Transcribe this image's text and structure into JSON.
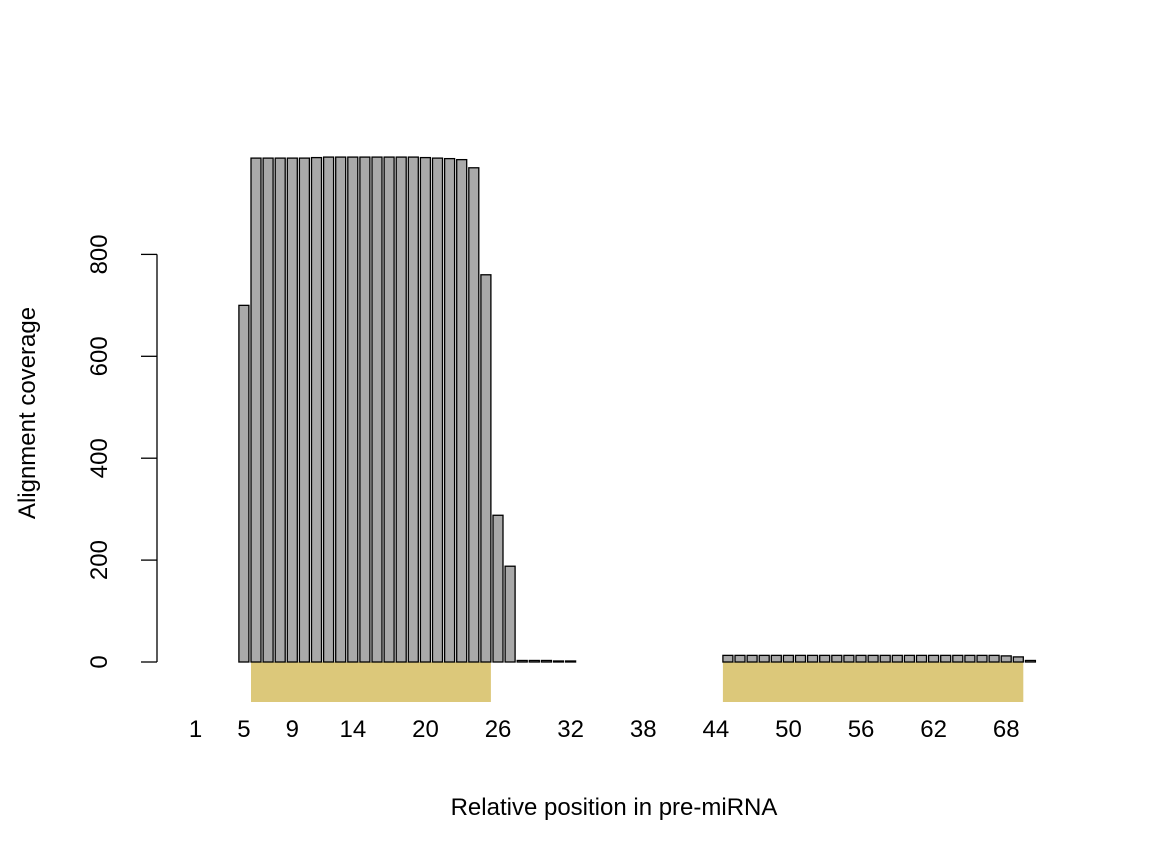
{
  "chart_data": {
    "type": "bar",
    "xlabel": "Relative position in pre-miRNA",
    "ylabel": "Alignment coverage",
    "x": [
      1,
      2,
      3,
      4,
      5,
      6,
      7,
      8,
      9,
      10,
      11,
      12,
      13,
      14,
      15,
      16,
      17,
      18,
      19,
      20,
      21,
      22,
      23,
      24,
      25,
      26,
      27,
      28,
      29,
      30,
      31,
      32,
      33,
      34,
      35,
      36,
      37,
      38,
      39,
      40,
      41,
      42,
      43,
      44,
      45,
      46,
      47,
      48,
      49,
      50,
      51,
      52,
      53,
      54,
      55,
      56,
      57,
      58,
      59,
      60,
      61,
      62,
      63,
      64,
      65,
      66,
      67,
      68,
      69,
      70
    ],
    "values": [
      0,
      0,
      0,
      0,
      700,
      989,
      989,
      989,
      989,
      989,
      990,
      991,
      991,
      991,
      991,
      991,
      991,
      991,
      991,
      990,
      989,
      988,
      986,
      970,
      760,
      288,
      188,
      3,
      3,
      3,
      2,
      2,
      0,
      0,
      0,
      0,
      0,
      0,
      0,
      0,
      0,
      0,
      0,
      0,
      13,
      13,
      13,
      13,
      13,
      13,
      13,
      13,
      13,
      13,
      13,
      13,
      13,
      13,
      13,
      13,
      13,
      13,
      13,
      13,
      13,
      13,
      13,
      12,
      10,
      3
    ],
    "xtick_labels": [
      "1",
      "5",
      "9",
      "14",
      "20",
      "26",
      "32",
      "38",
      "44",
      "50",
      "56",
      "62",
      "68"
    ],
    "xtick_positions": [
      1,
      5,
      9,
      14,
      20,
      26,
      32,
      38,
      44,
      50,
      56,
      62,
      68
    ],
    "yticks": [
      0,
      200,
      400,
      600,
      800
    ],
    "ylim": [
      0,
      991
    ],
    "grid": false,
    "legend": "none",
    "highlight_regions": [
      {
        "from": 6,
        "to": 25
      },
      {
        "from": 45,
        "to": 69
      }
    ],
    "colors": {
      "bar_fill": "#a9a9a9",
      "bar_stroke": "#000000",
      "region_fill": "#dcc87a"
    }
  }
}
